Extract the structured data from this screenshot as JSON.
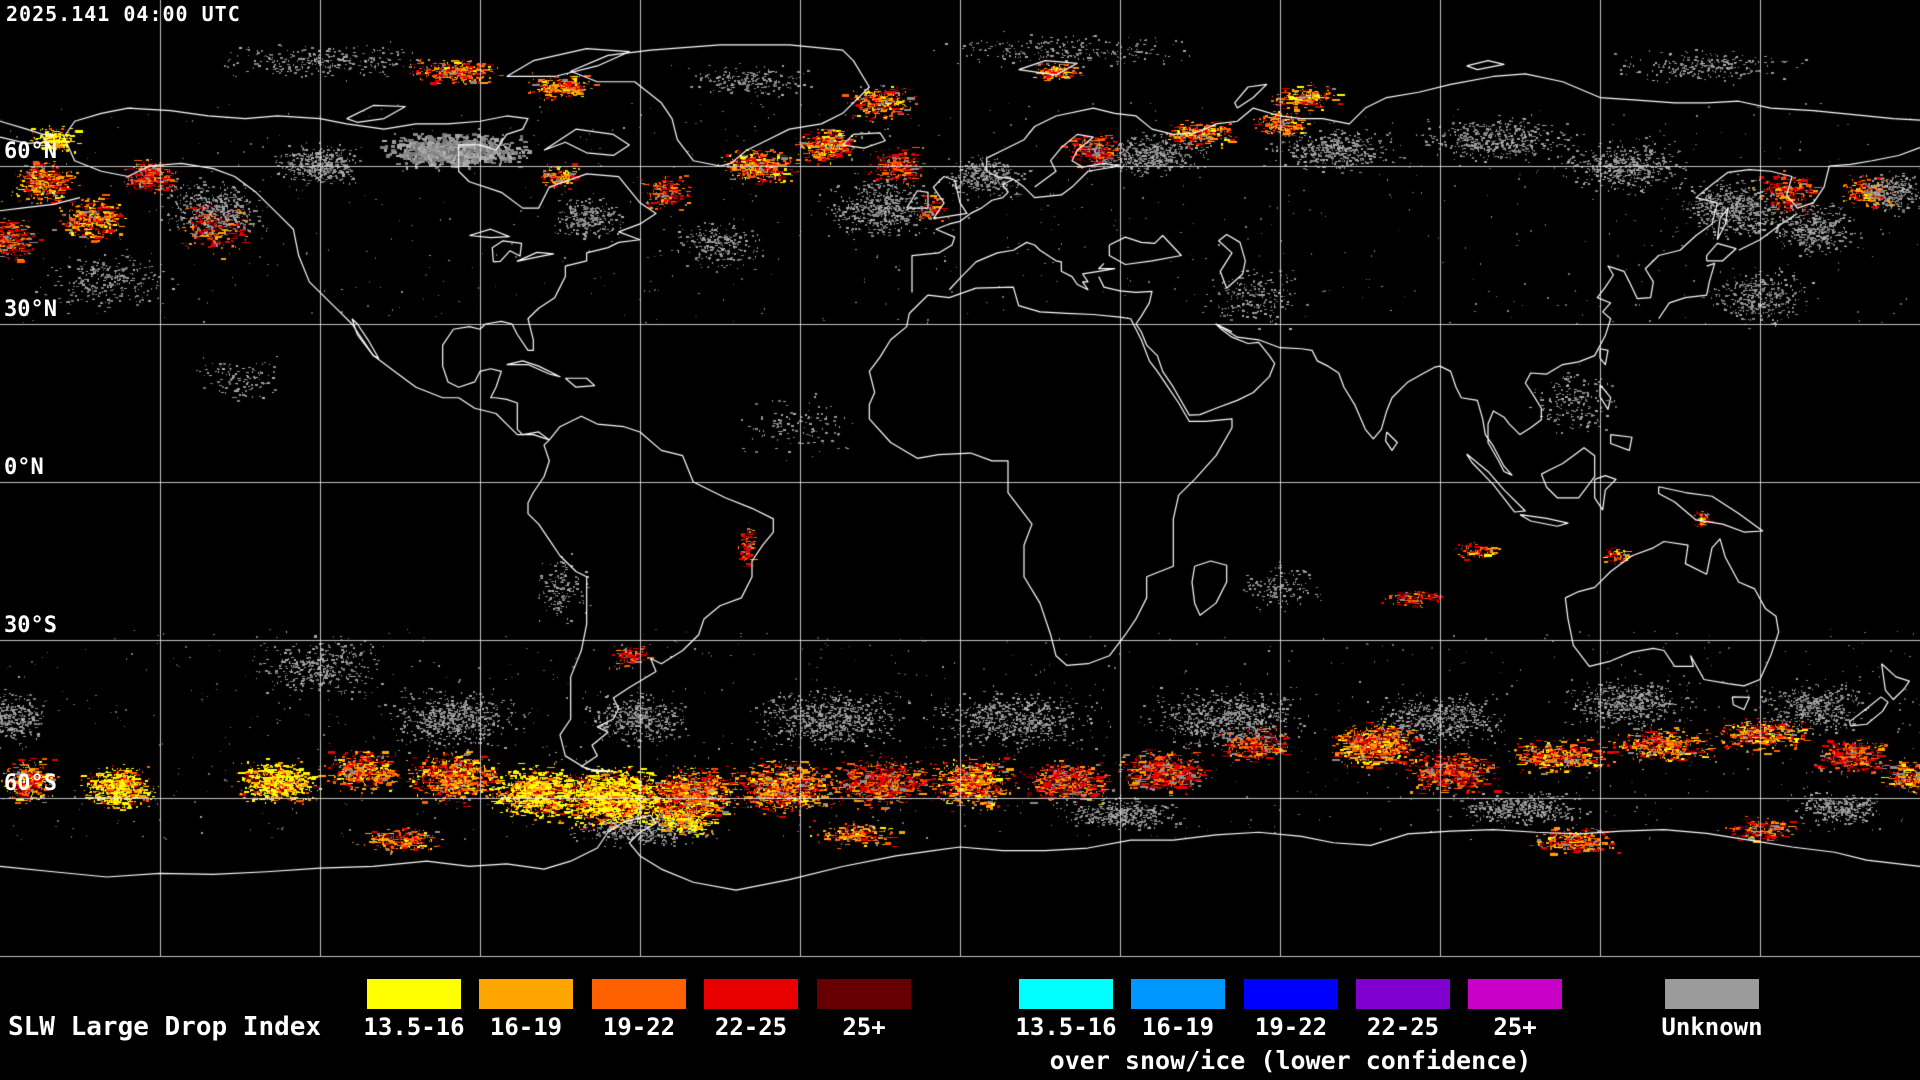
{
  "map": {
    "timestamp": "2025.141 04:00 UTC",
    "lat_labels": [
      {
        "text": "60°N",
        "lat": 60
      },
      {
        "text": "30°N",
        "lat": 30
      },
      {
        "text": "0°N",
        "lat": 0
      },
      {
        "text": "30°S",
        "lat": -30
      },
      {
        "text": "60°S",
        "lat": -60
      }
    ],
    "grid_lon_step_deg": 30,
    "grid_lat_step_deg": 30,
    "background_color": "#000000",
    "coastline_color": "#ffffff",
    "grid_color": "#e6e6e6"
  },
  "legend": {
    "title": "SLW Large Drop Index",
    "standard": [
      {
        "label": "13.5-16",
        "color": "#ffff00"
      },
      {
        "label": "16-19",
        "color": "#ffa500"
      },
      {
        "label": "19-22",
        "color": "#ff6000"
      },
      {
        "label": "22-25",
        "color": "#e80000"
      },
      {
        "label": "25+",
        "color": "#660000"
      }
    ],
    "snow_ice": [
      {
        "label": "13.5-16",
        "color": "#00ffff"
      },
      {
        "label": "16-19",
        "color": "#0096ff"
      },
      {
        "label": "19-22",
        "color": "#0000ff"
      },
      {
        "label": "22-25",
        "color": "#8000d0"
      },
      {
        "label": "25+",
        "color": "#c800c8"
      }
    ],
    "snow_ice_caption": "over snow/ice (lower confidence)",
    "unknown": {
      "label": "Unknown",
      "color": "#9b9b9b"
    }
  }
}
